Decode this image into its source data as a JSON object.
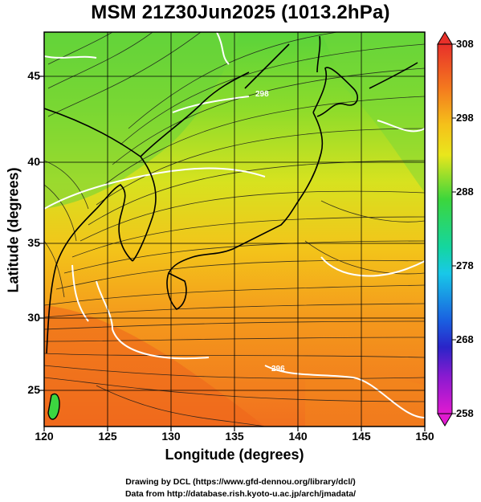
{
  "title": "MSM 21Z30Jun2025 (1013.2hPa)",
  "xlabel": "Longitude (degrees)",
  "ylabel": "Latitude  (degrees)",
  "x_ticks": [
    "120",
    "125",
    "130",
    "135",
    "140",
    "145",
    "150"
  ],
  "y_ticks": [
    "25",
    "30",
    "35",
    "40",
    "45"
  ],
  "colorbar_ticks": [
    "308",
    "298",
    "288",
    "278",
    "268",
    "258"
  ],
  "contour_labels": [
    "298",
    "296"
  ],
  "credits": {
    "line1": "Drawing by DCL (https://www.gfd-dennou.org/library/dcl/)",
    "line2": "Data from http://database.rish.kyoto-u.ac.jp/arch/jmadata/"
  },
  "map": {
    "lon_range": [
      120,
      150
    ],
    "lat_range": [
      22.5,
      47.5
    ],
    "grid_lon": [
      125,
      130,
      135,
      140,
      145
    ],
    "grid_lat": [
      25,
      30,
      35,
      40,
      45
    ],
    "variable": "temperature (K) with streamlines",
    "colorbar_range": [
      258,
      308
    ]
  },
  "colors": {
    "cold": "#2ad02a",
    "mid": "#cde21a",
    "warm": "#f5a818",
    "hot": "#f26a1c",
    "contour": "#ffffff",
    "coast": "#000000"
  }
}
